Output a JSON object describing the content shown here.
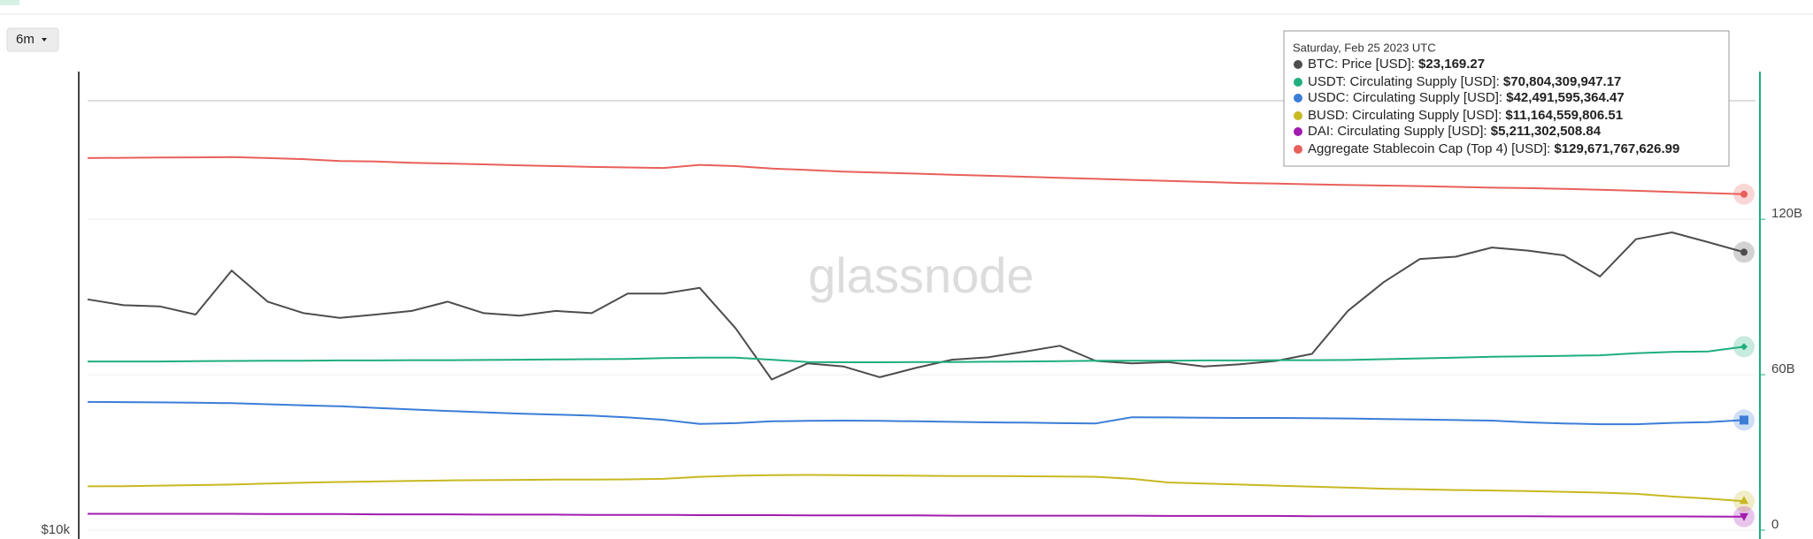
{
  "ui": {
    "range_button": "6m"
  },
  "chart_data": {
    "type": "line",
    "watermark": "glassnode",
    "ylim": [
      10000,
      40000
    ],
    "yscale": "log",
    "yticks": [
      {
        "value": 10000,
        "label": "$10k"
      }
    ],
    "y2lim": [
      0,
      177
    ],
    "y2ticks": [
      0,
      {
        "value": 60,
        "label": "60B"
      },
      {
        "value": 120,
        "label": "120B"
      }
    ],
    "grid": true,
    "series": [
      {
        "color": "#4d4d4d",
        "axis": "y",
        "marker": "circle",
        "values": [
          20090,
          19740,
          19670,
          19190,
          21920,
          19950,
          19270,
          19000,
          19190,
          19400,
          19950,
          19270,
          19130,
          19400,
          19270,
          20450,
          20450,
          20800,
          18400,
          15770,
          16560,
          16400,
          15880,
          16330,
          16740,
          16860,
          17150,
          17460,
          16680,
          16560,
          16620,
          16400,
          16510,
          16680,
          17040,
          19400,
          21170,
          22700,
          22860,
          23500,
          23280,
          22950,
          21530,
          24100,
          24600,
          23890,
          23169.27
        ]
      },
      {
        "color": "#1fae7d",
        "axis": "y2",
        "marker": "diamond",
        "values": [
          65.1,
          65.1,
          65.1,
          65.2,
          65.3,
          65.4,
          65.4,
          65.5,
          65.5,
          65.6,
          65.6,
          65.7,
          65.8,
          65.9,
          66.0,
          66.1,
          66.4,
          66.6,
          66.6,
          65.8,
          64.9,
          64.8,
          64.8,
          64.9,
          64.9,
          65.0,
          65.1,
          65.2,
          65.4,
          65.4,
          65.4,
          65.5,
          65.5,
          65.6,
          65.6,
          65.7,
          66.0,
          66.3,
          66.6,
          66.9,
          67.1,
          67.3,
          67.5,
          68.3,
          68.8,
          69.0,
          70.80430994717
        ]
      },
      {
        "color": "#3b7dd8",
        "axis": "y2",
        "marker": "square",
        "values": [
          49.5,
          49.4,
          49.3,
          49.2,
          49.0,
          48.6,
          48.2,
          47.8,
          47.2,
          46.6,
          46.0,
          45.5,
          45.0,
          44.6,
          44.2,
          43.5,
          42.6,
          41.0,
          41.3,
          42.0,
          42.2,
          42.3,
          42.2,
          42.0,
          41.8,
          41.6,
          41.5,
          41.3,
          41.2,
          43.6,
          43.5,
          43.4,
          43.3,
          43.3,
          43.2,
          43.1,
          42.9,
          42.7,
          42.5,
          42.3,
          41.6,
          41.2,
          40.9,
          40.9,
          41.4,
          41.7,
          42.49159536447
        ]
      },
      {
        "color": "#c8b822",
        "axis": "y2",
        "marker": "triangle",
        "values": [
          16.9,
          17.0,
          17.2,
          17.4,
          17.6,
          18.0,
          18.3,
          18.6,
          18.8,
          19.0,
          19.2,
          19.3,
          19.4,
          19.5,
          19.5,
          19.6,
          19.8,
          20.6,
          21.0,
          21.2,
          21.3,
          21.2,
          21.1,
          21.0,
          20.9,
          20.9,
          20.8,
          20.7,
          20.6,
          19.8,
          18.4,
          18.0,
          17.6,
          17.2,
          16.8,
          16.4,
          16.0,
          15.8,
          15.5,
          15.3,
          15.1,
          14.8,
          14.5,
          14.0,
          13.0,
          12.2,
          11.16455980651
        ]
      },
      {
        "color": "#a21caf",
        "axis": "y2",
        "marker": "triangle-down",
        "values": [
          6.3,
          6.3,
          6.3,
          6.3,
          6.3,
          6.2,
          6.2,
          6.2,
          6.1,
          6.1,
          6.1,
          6.0,
          6.0,
          6.0,
          5.9,
          5.9,
          5.9,
          5.8,
          5.8,
          5.8,
          5.7,
          5.7,
          5.7,
          5.7,
          5.6,
          5.6,
          5.6,
          5.6,
          5.6,
          5.6,
          5.5,
          5.5,
          5.5,
          5.5,
          5.4,
          5.4,
          5.4,
          5.4,
          5.4,
          5.4,
          5.4,
          5.3,
          5.3,
          5.3,
          5.3,
          5.25,
          5.21130250884
        ]
      },
      {
        "color": "#e8605a",
        "axis": "y2",
        "marker": "circle",
        "values": [
          143.6,
          143.7,
          143.8,
          143.9,
          144.0,
          143.6,
          143.2,
          142.5,
          142.3,
          141.8,
          141.5,
          141.2,
          140.8,
          140.5,
          140.2,
          140.0,
          139.8,
          141.0,
          140.5,
          139.6,
          139.0,
          138.4,
          138.0,
          137.6,
          137.2,
          136.8,
          136.4,
          136.0,
          135.6,
          135.2,
          134.8,
          134.4,
          134.0,
          133.8,
          133.5,
          133.2,
          133.0,
          132.8,
          132.5,
          132.2,
          132.0,
          131.7,
          131.4,
          131.0,
          130.5,
          130.1,
          129.67176762699
        ]
      }
    ],
    "tooltip": {
      "title": "Saturday, Feb 25 2023 UTC",
      "rows": [
        {
          "label": "BTC: Price [USD]:",
          "value": "$23,169.27"
        },
        {
          "label": "USDT: Circulating Supply [USD]:",
          "value": "$70,804,309,947.17"
        },
        {
          "label": "USDC: Circulating Supply [USD]:",
          "value": "$42,491,595,364.47"
        },
        {
          "label": "BUSD: Circulating Supply [USD]:",
          "value": "$11,164,559,806.51"
        },
        {
          "label": "DAI: Circulating Supply [USD]:",
          "value": "$5,211,302,508.84"
        },
        {
          "label": "Aggregate Stablecoin Cap (Top 4) [USD]:",
          "value": "$129,671,767,626.99"
        }
      ]
    }
  }
}
